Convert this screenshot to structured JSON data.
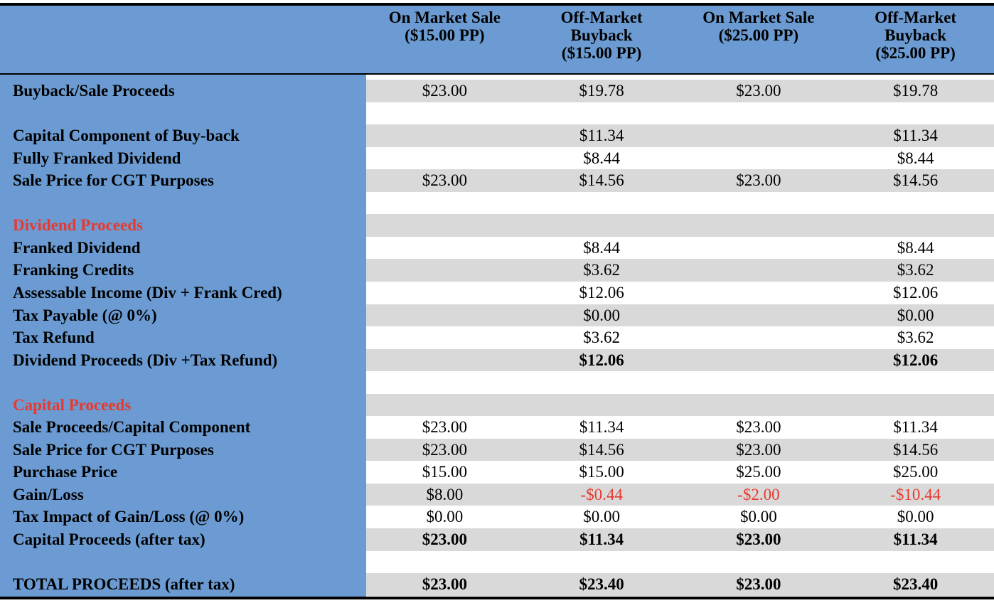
{
  "table": {
    "columns": [
      [
        "On Market Sale",
        "($15.00 PP)"
      ],
      [
        "Off-Market",
        "Buyback",
        "($15.00 PP)"
      ],
      [
        "On Market Sale",
        "($25.00 PP)"
      ],
      [
        "Off-Market",
        "Buyback",
        "($25.00 PP)"
      ]
    ],
    "sections": [
      {
        "rows": [
          {
            "label": "Buyback/Sale Proceeds",
            "cells": [
              "$23.00",
              "$19.78",
              "$23.00",
              "$19.78"
            ]
          }
        ]
      },
      {
        "rows": [
          {
            "label": "Capital Component of Buy-back",
            "cells": [
              null,
              "$11.34",
              null,
              "$11.34"
            ]
          },
          {
            "label": "Fully Franked Dividend",
            "cells": [
              null,
              "$8.44",
              null,
              "$8.44"
            ]
          },
          {
            "label": "Sale Price for CGT Purposes",
            "cells": [
              "$23.00",
              "$14.56",
              "$23.00",
              "$14.56"
            ]
          }
        ]
      },
      {
        "heading": "Dividend Proceeds",
        "rows": [
          {
            "label": "Franked Dividend",
            "cells": [
              null,
              "$8.44",
              null,
              "$8.44"
            ]
          },
          {
            "label": "Franking Credits",
            "cells": [
              null,
              "$3.62",
              null,
              "$3.62"
            ]
          },
          {
            "label": "Assessable Income (Div + Frank Cred)",
            "cells": [
              null,
              "$12.06",
              null,
              "$12.06"
            ]
          },
          {
            "label": "Tax Payable (@ 0%)",
            "cells": [
              null,
              "$0.00",
              null,
              "$0.00"
            ]
          },
          {
            "label": "Tax Refund",
            "cells": [
              null,
              "$3.62",
              null,
              "$3.62"
            ]
          },
          {
            "label": "Dividend Proceeds (Div +Tax Refund)",
            "cells": [
              null,
              "$12.06",
              null,
              "$12.06"
            ],
            "bold": true
          }
        ]
      },
      {
        "heading": "Capital Proceeds",
        "rows": [
          {
            "label": "Sale Proceeds/Capital Component",
            "cells": [
              "$23.00",
              "$11.34",
              "$23.00",
              "$11.34"
            ]
          },
          {
            "label": "Sale Price for CGT Purposes",
            "cells": [
              "$23.00",
              "$14.56",
              "$23.00",
              "$14.56"
            ]
          },
          {
            "label": "Purchase Price",
            "cells": [
              "$15.00",
              "$15.00",
              "$25.00",
              "$25.00"
            ]
          },
          {
            "label": "Gain/Loss",
            "cells": [
              "$8.00",
              "-$0.44",
              "-$2.00",
              "-$10.44"
            ]
          },
          {
            "label": "Tax Impact of Gain/Loss (@ 0%)",
            "cells": [
              "$0.00",
              "$0.00",
              "$0.00",
              "$0.00"
            ]
          },
          {
            "label": "Capital Proceeds (after tax)",
            "cells": [
              "$23.00",
              "$11.34",
              "$23.00",
              "$11.34"
            ],
            "bold": true
          }
        ]
      },
      {
        "rows": [
          {
            "label": "TOTAL PROCEEDS (after tax)",
            "cells": [
              "$23.00",
              "$23.40",
              "$23.00",
              "$23.40"
            ],
            "bold": true
          }
        ]
      }
    ]
  }
}
